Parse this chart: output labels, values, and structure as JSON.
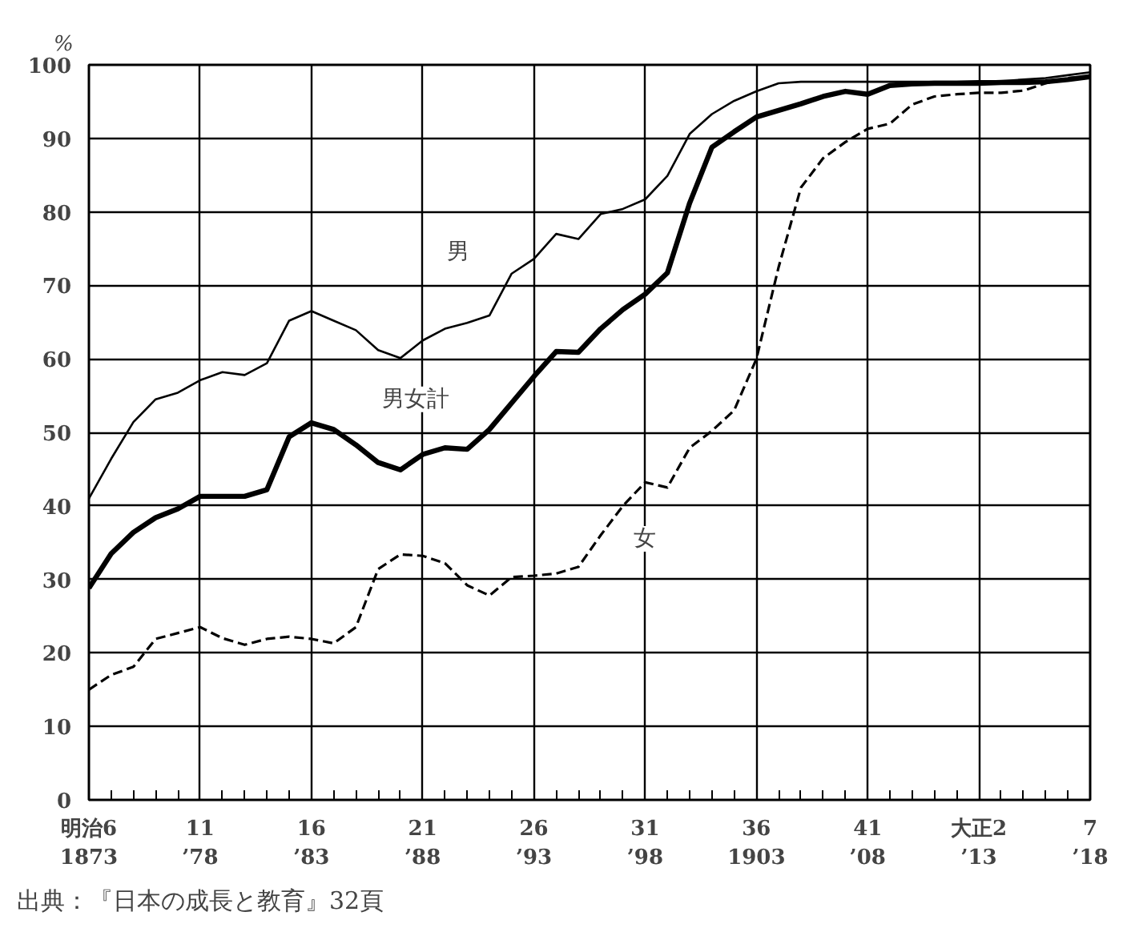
{
  "chart_data": {
    "type": "line",
    "categories": [
      "明治6\n1873",
      null,
      null,
      null,
      null,
      "11\n’78",
      null,
      null,
      null,
      null,
      "16\n’83",
      null,
      null,
      null,
      null,
      "21\n’88",
      null,
      null,
      null,
      null,
      "26\n’93",
      null,
      null,
      null,
      null,
      "31\n’98",
      null,
      null,
      null,
      null,
      "36\n1903",
      null,
      null,
      null,
      null,
      "41\n’08",
      null,
      null,
      null,
      null,
      "大正2\n’13",
      null,
      null,
      null,
      null,
      "7\n’18"
    ],
    "series": [
      {
        "name": "男",
        "color": "#000000",
        "line_style": "solid",
        "values": [
          41,
          46.4,
          51.4,
          54.5,
          55.4,
          57.1,
          58.2,
          57.8,
          59.4,
          65.2,
          66.5,
          65.2,
          63.9,
          61.2,
          60.1,
          62.5,
          64.1,
          64.9,
          65.9,
          71.6,
          73.6,
          77,
          76.3,
          79.7,
          80.4,
          81.7,
          84.9,
          90.6,
          93.3,
          95.1,
          96.4,
          97.5,
          97.7,
          97.7,
          97.7,
          97.7,
          97.7,
          97.7,
          97.7,
          97.7,
          97.8,
          97.8,
          98,
          98.2,
          98.6,
          99
        ]
      },
      {
        "name": "男女計",
        "color": "#000000",
        "line_style": "solid",
        "values": [
          28.8,
          33.5,
          36.4,
          38.4,
          39.6,
          41.3,
          41.3,
          41.3,
          42.2,
          49.4,
          51.3,
          50.4,
          48.3,
          45.9,
          44.9,
          47,
          47.9,
          47.7,
          50.4,
          54,
          57.6,
          61,
          60.9,
          64.1,
          66.7,
          68.8,
          71.7,
          81.2,
          88.8,
          90.9,
          92.9,
          93.8,
          94.7,
          95.7,
          96.4,
          96,
          97.2,
          97.4,
          97.5,
          97.5,
          97.5,
          97.6,
          97.6,
          97.7,
          98,
          98.4
        ]
      },
      {
        "name": "女",
        "color": "#000000",
        "line_style": "dashed",
        "values": [
          15,
          17,
          18.1,
          21.9,
          22.7,
          23.5,
          22,
          21.1,
          21.9,
          22.2,
          21.9,
          21.3,
          23.5,
          31.4,
          33.4,
          33.2,
          32.2,
          29.2,
          27.8,
          30.3,
          30.5,
          30.8,
          31.7,
          36,
          40,
          43.2,
          42.5,
          47.9,
          50.2,
          53,
          60,
          72.5,
          83.3,
          87.3,
          89.5,
          91.3,
          92,
          94.6,
          95.7,
          96,
          96.2,
          96.2,
          96.5,
          97.5,
          98.2,
          98.4
        ]
      }
    ],
    "ylabel": "%",
    "ylim": [
      0,
      100
    ],
    "yticks": [
      0,
      10,
      20,
      30,
      40,
      50,
      60,
      70,
      80,
      90,
      100
    ],
    "grid": true,
    "legend": false,
    "marker": "none",
    "annotations": [
      "出典：『日本の成長と教育』32頁"
    ]
  }
}
